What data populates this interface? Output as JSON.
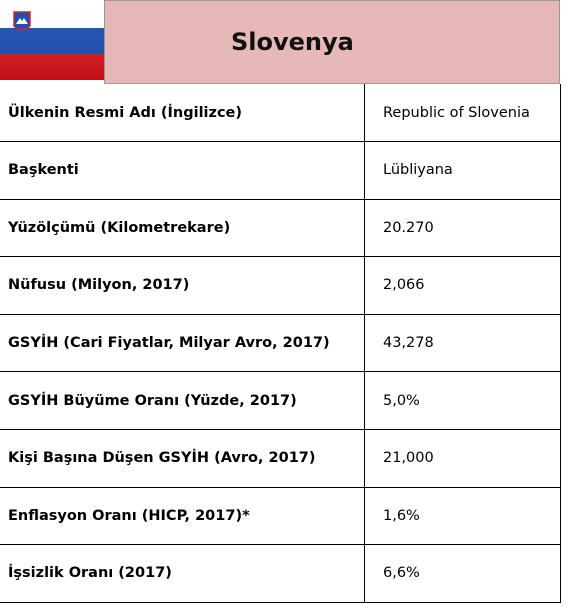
{
  "header": {
    "title": "Slovenya"
  },
  "table": {
    "rows": [
      [
        "Ülkenin Resmi Adı (İngilizce)",
        "Republic of Slovenia"
      ],
      [
        "Başkenti",
        "Lübliyana"
      ],
      [
        "Yüzölçümü (Kilometrekare)",
        "20.270"
      ],
      [
        "Nüfusu (Milyon, 2017)",
        "2,066"
      ],
      [
        "GSYİH (Cari Fiyatlar, Milyar Avro, 2017)",
        "43,278"
      ],
      [
        "GSYİH Büyüme Oranı (Yüzde, 2017)",
        "5,0%"
      ],
      [
        "Kişi Başına Düşen GSYİH (Avro, 2017)",
        "21,000"
      ],
      [
        "Enflasyon Oranı (HICP, 2017)*",
        "1,6%"
      ],
      [
        "İşsizlik Oranı (2017)",
        "6,6%"
      ]
    ]
  }
}
